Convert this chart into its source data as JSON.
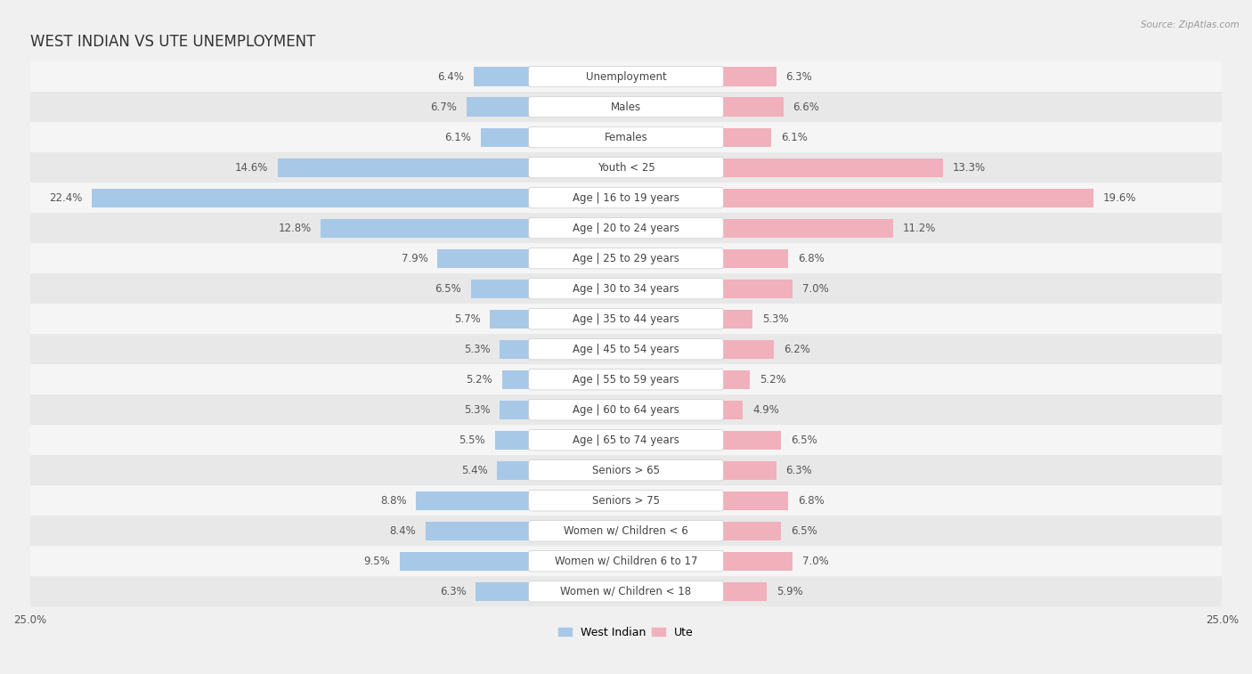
{
  "title": "WEST INDIAN VS UTE UNEMPLOYMENT",
  "source": "Source: ZipAtlas.com",
  "categories": [
    "Unemployment",
    "Males",
    "Females",
    "Youth < 25",
    "Age | 16 to 19 years",
    "Age | 20 to 24 years",
    "Age | 25 to 29 years",
    "Age | 30 to 34 years",
    "Age | 35 to 44 years",
    "Age | 45 to 54 years",
    "Age | 55 to 59 years",
    "Age | 60 to 64 years",
    "Age | 65 to 74 years",
    "Seniors > 65",
    "Seniors > 75",
    "Women w/ Children < 6",
    "Women w/ Children 6 to 17",
    "Women w/ Children < 18"
  ],
  "west_indian": [
    6.4,
    6.7,
    6.1,
    14.6,
    22.4,
    12.8,
    7.9,
    6.5,
    5.7,
    5.3,
    5.2,
    5.3,
    5.5,
    5.4,
    8.8,
    8.4,
    9.5,
    6.3
  ],
  "ute": [
    6.3,
    6.6,
    6.1,
    13.3,
    19.6,
    11.2,
    6.8,
    7.0,
    5.3,
    6.2,
    5.2,
    4.9,
    6.5,
    6.3,
    6.8,
    6.5,
    7.0,
    5.9
  ],
  "west_indian_color": "#a8c8e8",
  "ute_color": "#f0b0bc",
  "west_indian_bright": "#5b9dc9",
  "ute_bright": "#e8607a",
  "xlim": 25.0,
  "row_bg_odd": "#e8e8e8",
  "row_bg_even": "#f5f5f5",
  "label_bg": "#ffffff",
  "title_fontsize": 12,
  "label_fontsize": 8.5,
  "value_fontsize": 8.5,
  "legend_fontsize": 9,
  "fig_bg": "#f0f0f0"
}
